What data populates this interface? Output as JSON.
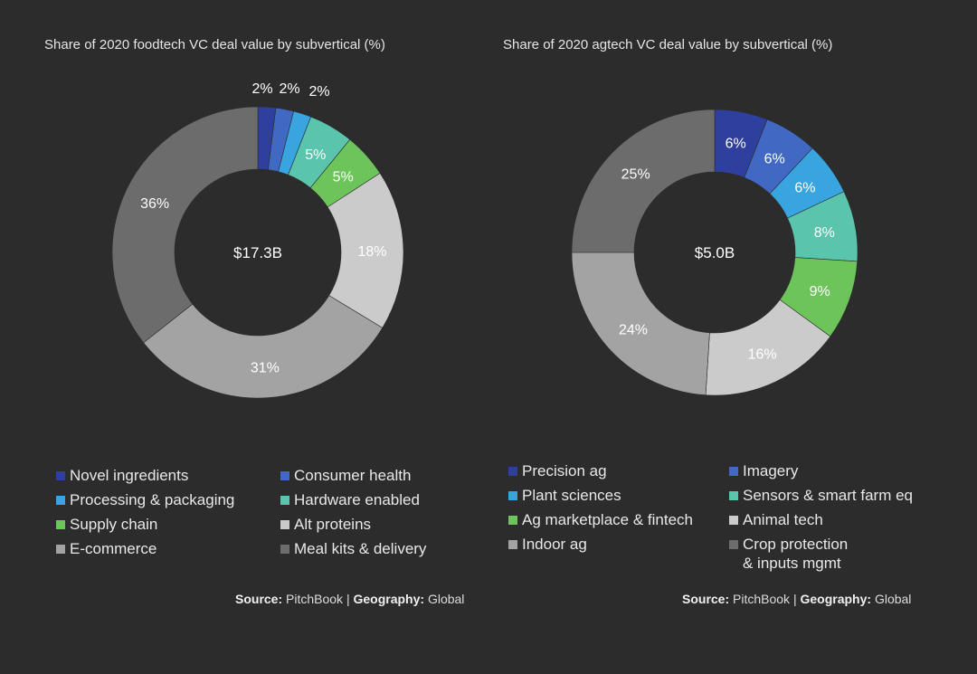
{
  "chart_data": [
    {
      "type": "pie",
      "variant": "donut",
      "title": "Share of 2020 foodtech VC deal value by subvertical (%)",
      "center_label": "$17.3B",
      "unit": "%",
      "categories": [
        "Novel ingredients",
        "Consumer health",
        "Processing & packaging",
        "Hardware enabled",
        "Supply chain",
        "Alt proteins",
        "E-commerce",
        "Meal kits & delivery"
      ],
      "legend_order": [
        "Novel ingredients",
        "Consumer health",
        "Processing & packaging",
        "Hardware enabled",
        "Supply chain",
        "Alt proteins",
        "E-commerce",
        "Meal kits & delivery"
      ],
      "slices": [
        {
          "label": "Novel ingredients",
          "value": 2,
          "display": "2%",
          "color": "#2e3f9e"
        },
        {
          "label": "Consumer health",
          "value": 2,
          "display": "2%",
          "color": "#4169c4"
        },
        {
          "label": "Processing & packaging",
          "value": 2,
          "display": "2%",
          "color": "#38a4e0"
        },
        {
          "label": "Hardware enabled",
          "value": 5,
          "display": "5%",
          "color": "#5ac4ac"
        },
        {
          "label": "Supply chain",
          "value": 5,
          "display": "5%",
          "color": "#6cc45a"
        },
        {
          "label": "Alt proteins",
          "value": 18,
          "display": "18%",
          "color": "#cbcbcb"
        },
        {
          "label": "E-commerce",
          "value": 31,
          "display": "31%",
          "color": "#a3a3a3"
        },
        {
          "label": "Meal kits & delivery",
          "value": 36,
          "display": "36%",
          "color": "#6c6c6c"
        }
      ],
      "source_label": "Source:",
      "source": "PitchBook",
      "separator": "|",
      "geography_label": "Geography:",
      "geography": "Global"
    },
    {
      "type": "pie",
      "variant": "donut",
      "title": "Share of 2020 agtech VC deal value by subvertical (%)",
      "center_label": "$5.0B",
      "unit": "%",
      "categories": [
        "Precision ag",
        "Imagery",
        "Plant sciences",
        "Sensors & smart farm eq",
        "Ag marketplace & fintech",
        "Animal tech",
        "Indoor ag",
        "Crop protection\n& inputs mgmt"
      ],
      "legend_order": [
        "Precision ag",
        "Imagery",
        "Plant sciences",
        "Sensors & smart farm eq",
        "Ag marketplace & fintech",
        "Animal tech",
        "Indoor ag",
        "Crop protection\n& inputs mgmt"
      ],
      "slices": [
        {
          "label": "Precision ag",
          "value": 6,
          "display": "6%",
          "color": "#2e3f9e"
        },
        {
          "label": "Imagery",
          "value": 6,
          "display": "6%",
          "color": "#4169c4"
        },
        {
          "label": "Plant sciences",
          "value": 6,
          "display": "6%",
          "color": "#38a4e0"
        },
        {
          "label": "Sensors & smart farm eq",
          "value": 8,
          "display": "8%",
          "color": "#5ac4ac"
        },
        {
          "label": "Ag marketplace & fintech",
          "value": 9,
          "display": "9%",
          "color": "#6cc45a"
        },
        {
          "label": "Animal tech",
          "value": 16,
          "display": "16%",
          "color": "#cbcbcb"
        },
        {
          "label": "Indoor ag",
          "value": 24,
          "display": "24%",
          "color": "#a3a3a3"
        },
        {
          "label": "Crop protection\n& inputs mgmt",
          "value": 25,
          "display": "25%",
          "color": "#6c6c6c"
        }
      ],
      "source_label": "Source:",
      "source": "PitchBook",
      "separator": "|",
      "geography_label": "Geography:",
      "geography": "Global"
    }
  ]
}
